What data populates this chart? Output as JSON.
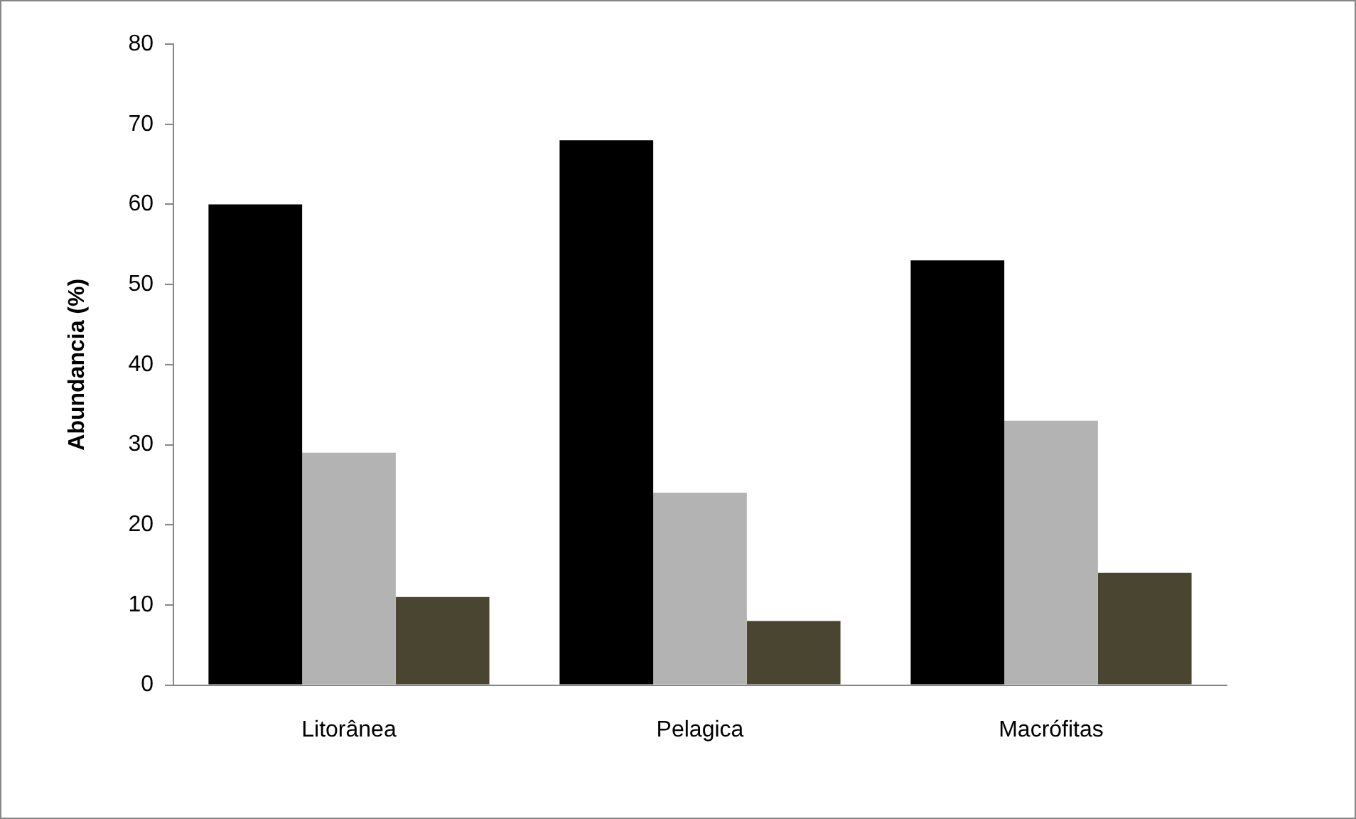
{
  "chart_data": {
    "type": "bar",
    "ylabel": "Abundancia (%)",
    "categories": [
      "Litorânea",
      "Pelagica",
      "Macrófitas"
    ],
    "series": [
      {
        "color": "#000000",
        "values": [
          60,
          68,
          53
        ]
      },
      {
        "color": "#b3b3b3",
        "values": [
          29,
          24,
          33
        ]
      },
      {
        "color": "#4a4530",
        "values": [
          11,
          8,
          14
        ]
      }
    ],
    "ylim": [
      0,
      80
    ],
    "yticks": [
      0,
      10,
      20,
      30,
      40,
      50,
      60,
      70,
      80
    ],
    "grid": false,
    "legend": false
  }
}
